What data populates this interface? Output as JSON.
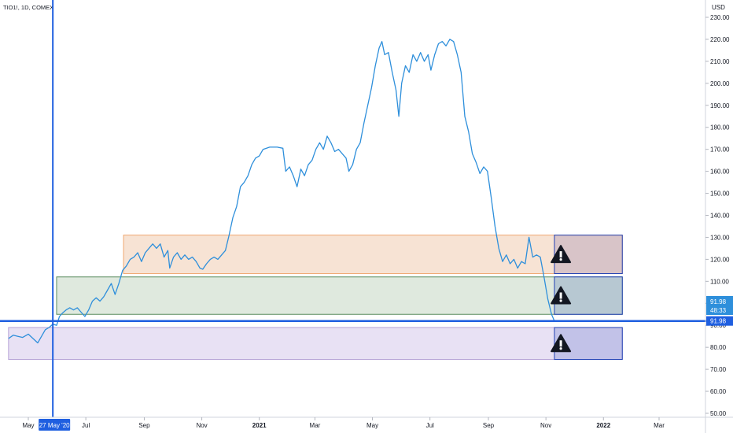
{
  "header": {
    "symbol": "TIO1!, 1D, COMEX"
  },
  "chart_data": {
    "type": "line",
    "title": "TIO1!, 1D, COMEX",
    "currency": "USD",
    "y_range": [
      50,
      230
    ],
    "y_ticks": [
      230,
      220,
      210,
      200,
      190,
      180,
      170,
      160,
      150,
      140,
      130,
      120,
      110,
      100,
      90,
      80,
      70,
      60,
      50
    ],
    "y_tick_labels": [
      "230.00",
      "220.00",
      "210.00",
      "200.00",
      "190.00",
      "180.00",
      "170.00",
      "160.00",
      "150.00",
      "140.00",
      "130.00",
      "120.00",
      "110.00",
      "100.00",
      "90.00",
      "80.00",
      "70.00",
      "60.00",
      "50.00"
    ],
    "x_ticks": [
      {
        "date": "2020-05-01",
        "label": "May",
        "bold": false
      },
      {
        "date": "2020-07-01",
        "label": "Jul",
        "bold": false
      },
      {
        "date": "2020-09-01",
        "label": "Sep",
        "bold": false
      },
      {
        "date": "2020-11-01",
        "label": "Nov",
        "bold": false
      },
      {
        "date": "2021-01-01",
        "label": "2021",
        "bold": true
      },
      {
        "date": "2021-03-01",
        "label": "Mar",
        "bold": false
      },
      {
        "date": "2021-05-01",
        "label": "May",
        "bold": false
      },
      {
        "date": "2021-07-01",
        "label": "Jul",
        "bold": false
      },
      {
        "date": "2021-09-01",
        "label": "Sep",
        "bold": false
      },
      {
        "date": "2021-11-01",
        "label": "Nov",
        "bold": false
      },
      {
        "date": "2022-01-01",
        "label": "2022",
        "bold": true
      },
      {
        "date": "2022-03-01",
        "label": "Mar",
        "bold": false
      }
    ],
    "series": [
      {
        "color": "#2e8fdb",
        "points": [
          [
            "2020-04-10",
            84
          ],
          [
            "2020-04-15",
            85.5
          ],
          [
            "2020-04-20",
            85
          ],
          [
            "2020-04-25",
            84.5
          ],
          [
            "2020-05-01",
            86
          ],
          [
            "2020-05-06",
            84
          ],
          [
            "2020-05-11",
            82
          ],
          [
            "2020-05-15",
            85
          ],
          [
            "2020-05-19",
            88
          ],
          [
            "2020-05-23",
            89
          ],
          [
            "2020-05-27",
            90.5
          ],
          [
            "2020-05-31",
            90
          ],
          [
            "2020-06-03",
            94
          ],
          [
            "2020-06-06",
            95.5
          ],
          [
            "2020-06-10",
            97
          ],
          [
            "2020-06-14",
            98
          ],
          [
            "2020-06-18",
            97
          ],
          [
            "2020-06-22",
            98
          ],
          [
            "2020-06-26",
            96
          ],
          [
            "2020-06-30",
            94
          ],
          [
            "2020-07-04",
            97
          ],
          [
            "2020-07-08",
            101
          ],
          [
            "2020-07-12",
            102.5
          ],
          [
            "2020-07-16",
            101
          ],
          [
            "2020-07-20",
            103
          ],
          [
            "2020-07-24",
            106
          ],
          [
            "2020-07-28",
            109
          ],
          [
            "2020-08-01",
            104
          ],
          [
            "2020-08-05",
            109
          ],
          [
            "2020-08-09",
            115
          ],
          [
            "2020-08-13",
            117
          ],
          [
            "2020-08-17",
            120
          ],
          [
            "2020-08-21",
            121
          ],
          [
            "2020-08-25",
            123
          ],
          [
            "2020-08-29",
            119
          ],
          [
            "2020-09-02",
            123
          ],
          [
            "2020-09-06",
            125
          ],
          [
            "2020-09-10",
            127
          ],
          [
            "2020-09-14",
            125
          ],
          [
            "2020-09-18",
            127
          ],
          [
            "2020-09-22",
            121
          ],
          [
            "2020-09-26",
            124
          ],
          [
            "2020-09-28",
            116
          ],
          [
            "2020-10-02",
            121
          ],
          [
            "2020-10-06",
            123
          ],
          [
            "2020-10-10",
            120
          ],
          [
            "2020-10-14",
            122
          ],
          [
            "2020-10-18",
            120
          ],
          [
            "2020-10-22",
            121
          ],
          [
            "2020-10-26",
            119
          ],
          [
            "2020-10-30",
            116
          ],
          [
            "2020-11-02",
            115.5
          ],
          [
            "2020-11-06",
            118
          ],
          [
            "2020-11-10",
            120
          ],
          [
            "2020-11-14",
            121
          ],
          [
            "2020-11-18",
            120
          ],
          [
            "2020-11-22",
            122
          ],
          [
            "2020-11-26",
            124
          ],
          [
            "2020-11-30",
            131
          ],
          [
            "2020-12-04",
            139
          ],
          [
            "2020-12-08",
            144
          ],
          [
            "2020-12-12",
            153
          ],
          [
            "2020-12-16",
            155
          ],
          [
            "2020-12-20",
            158
          ],
          [
            "2020-12-24",
            163
          ],
          [
            "2020-12-28",
            166
          ],
          [
            "2021-01-01",
            167
          ],
          [
            "2021-01-05",
            170
          ],
          [
            "2021-01-12",
            171
          ],
          [
            "2021-01-20",
            171
          ],
          [
            "2021-01-26",
            170.5
          ],
          [
            "2021-01-29",
            160
          ],
          [
            "2021-02-02",
            162
          ],
          [
            "2021-02-06",
            158
          ],
          [
            "2021-02-10",
            153
          ],
          [
            "2021-02-14",
            161
          ],
          [
            "2021-02-18",
            158
          ],
          [
            "2021-02-22",
            163
          ],
          [
            "2021-02-26",
            165
          ],
          [
            "2021-03-02",
            170
          ],
          [
            "2021-03-06",
            173
          ],
          [
            "2021-03-10",
            170
          ],
          [
            "2021-03-14",
            176
          ],
          [
            "2021-03-18",
            173
          ],
          [
            "2021-03-22",
            169
          ],
          [
            "2021-03-26",
            170
          ],
          [
            "2021-03-30",
            168
          ],
          [
            "2021-04-03",
            166
          ],
          [
            "2021-04-06",
            160
          ],
          [
            "2021-04-10",
            163
          ],
          [
            "2021-04-14",
            170
          ],
          [
            "2021-04-18",
            173
          ],
          [
            "2021-04-22",
            182
          ],
          [
            "2021-04-26",
            190
          ],
          [
            "2021-04-30",
            198
          ],
          [
            "2021-05-04",
            208
          ],
          [
            "2021-05-08",
            216
          ],
          [
            "2021-05-11",
            219
          ],
          [
            "2021-05-14",
            213
          ],
          [
            "2021-05-18",
            214
          ],
          [
            "2021-05-22",
            205
          ],
          [
            "2021-05-26",
            197
          ],
          [
            "2021-05-29",
            185
          ],
          [
            "2021-06-01",
            200
          ],
          [
            "2021-06-05",
            208
          ],
          [
            "2021-06-09",
            205
          ],
          [
            "2021-06-13",
            213
          ],
          [
            "2021-06-17",
            210
          ],
          [
            "2021-06-21",
            214
          ],
          [
            "2021-06-25",
            210
          ],
          [
            "2021-06-29",
            213
          ],
          [
            "2021-07-02",
            206
          ],
          [
            "2021-07-06",
            213
          ],
          [
            "2021-07-10",
            218
          ],
          [
            "2021-07-14",
            219
          ],
          [
            "2021-07-18",
            217
          ],
          [
            "2021-07-22",
            220
          ],
          [
            "2021-07-26",
            219
          ],
          [
            "2021-07-30",
            213
          ],
          [
            "2021-08-03",
            205
          ],
          [
            "2021-08-07",
            185
          ],
          [
            "2021-08-11",
            178
          ],
          [
            "2021-08-15",
            168
          ],
          [
            "2021-08-19",
            164
          ],
          [
            "2021-08-23",
            159
          ],
          [
            "2021-08-27",
            162
          ],
          [
            "2021-08-31",
            160
          ],
          [
            "2021-09-04",
            148
          ],
          [
            "2021-09-08",
            135
          ],
          [
            "2021-09-12",
            125
          ],
          [
            "2021-09-16",
            119
          ],
          [
            "2021-09-20",
            122
          ],
          [
            "2021-09-24",
            118
          ],
          [
            "2021-09-28",
            120
          ],
          [
            "2021-10-02",
            116
          ],
          [
            "2021-10-06",
            119
          ],
          [
            "2021-10-10",
            118
          ],
          [
            "2021-10-14",
            130
          ],
          [
            "2021-10-18",
            121
          ],
          [
            "2021-10-22",
            122
          ],
          [
            "2021-10-26",
            121
          ],
          [
            "2021-10-30",
            112
          ],
          [
            "2021-11-03",
            102
          ],
          [
            "2021-11-07",
            95
          ],
          [
            "2021-11-10",
            91.98
          ]
        ]
      }
    ],
    "zones": [
      {
        "name": "orange-zone",
        "start": "2020-08-10",
        "end": "2022-01-21",
        "top": 131,
        "bottom": 113.5,
        "fill": "#f7e3d4",
        "stroke": "#f0a870"
      },
      {
        "name": "green-zone",
        "start": "2020-05-31",
        "end": "2022-01-21",
        "top": 112,
        "bottom": 95,
        "fill": "#dfe9de",
        "stroke": "#5a8c5f"
      },
      {
        "name": "purple-zone",
        "start": "2020-04-10",
        "end": "2022-01-21",
        "top": 89,
        "bottom": 74.5,
        "fill": "#e8e1f4",
        "stroke": "#b5a2d6"
      }
    ],
    "vertical_line_date": "2020-05-27",
    "vertical_line_label": "27 May '20",
    "horizontal_line_value": 91.98,
    "price_labels": [
      {
        "text": "91.98",
        "color": "#2e8fdb"
      },
      {
        "text": "48:33",
        "color": "#2e8fdb"
      },
      {
        "text": "91.98",
        "color": "#1f5fe0"
      }
    ],
    "warning_zones": [
      {
        "name": "warning-zone-orange",
        "fill": "#d8c4c8",
        "top": 131,
        "bottom": 113.5
      },
      {
        "name": "warning-zone-green",
        "fill": "#b7c8d2",
        "top": 112,
        "bottom": 95
      },
      {
        "name": "warning-zone-purple",
        "fill": "#c2c2e8",
        "top": 89,
        "bottom": 74.5
      }
    ],
    "warning_start": "2021-11-10",
    "warning_end": "2022-01-21",
    "warning_icon": "warning-triangle-icon"
  }
}
